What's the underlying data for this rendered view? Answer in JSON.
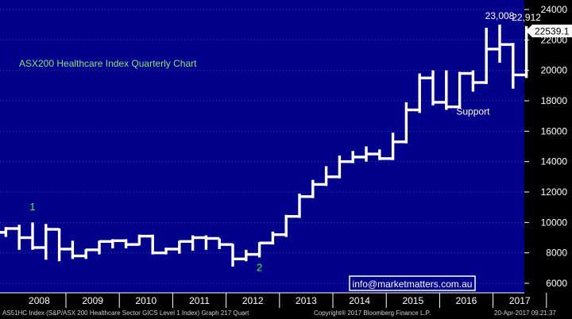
{
  "chart_data": {
    "type": "ohlc",
    "title": "ASX200 Healthcare Index Quarterly Chart",
    "periodicity": "Quarterly",
    "ylim": [
      5600,
      24400
    ],
    "y_ticks": [
      6000,
      8000,
      10000,
      12000,
      14000,
      16000,
      18000,
      20000,
      22000,
      24000
    ],
    "y_tick_labels": [
      "6000",
      "8000",
      "10000",
      "12000",
      "14000",
      "16000",
      "18000",
      "20000",
      "22000",
      "24000"
    ],
    "x_labels": [
      "2008",
      "2009",
      "2010",
      "2011",
      "2012",
      "2013",
      "2014",
      "2015",
      "2016",
      "2017"
    ],
    "bars": [
      {
        "q": "2007Q4",
        "o": 9350,
        "h": 9700,
        "l": 9050,
        "c": 9600
      },
      {
        "q": "2008Q1",
        "o": 9600,
        "h": 9850,
        "l": 8200,
        "c": 9000
      },
      {
        "q": "2008Q2",
        "o": 9000,
        "h": 10000,
        "l": 8200,
        "c": 8350
      },
      {
        "q": "2008Q3",
        "o": 8350,
        "h": 9900,
        "l": 7550,
        "c": 9550
      },
      {
        "q": "2008Q4",
        "o": 9550,
        "h": 9600,
        "l": 7450,
        "c": 8250
      },
      {
        "q": "2009Q1",
        "o": 8250,
        "h": 8800,
        "l": 7600,
        "c": 7800
      },
      {
        "q": "2009Q2",
        "o": 7800,
        "h": 8250,
        "l": 7600,
        "c": 8200
      },
      {
        "q": "2009Q3",
        "o": 8200,
        "h": 8800,
        "l": 7900,
        "c": 8750
      },
      {
        "q": "2009Q4",
        "o": 8750,
        "h": 8900,
        "l": 8300,
        "c": 8800
      },
      {
        "q": "2010Q1",
        "o": 8800,
        "h": 8900,
        "l": 8300,
        "c": 8550
      },
      {
        "q": "2010Q2",
        "o": 8550,
        "h": 9200,
        "l": 8500,
        "c": 9100
      },
      {
        "q": "2010Q3",
        "o": 9100,
        "h": 9200,
        "l": 7900,
        "c": 8000
      },
      {
        "q": "2010Q4",
        "o": 8000,
        "h": 8350,
        "l": 7900,
        "c": 8250
      },
      {
        "q": "2011Q1",
        "o": 8250,
        "h": 8800,
        "l": 7950,
        "c": 8750
      },
      {
        "q": "2011Q2",
        "o": 8750,
        "h": 9150,
        "l": 8150,
        "c": 9000
      },
      {
        "q": "2011Q3",
        "o": 9000,
        "h": 9150,
        "l": 8200,
        "c": 8950
      },
      {
        "q": "2011Q4",
        "o": 8950,
        "h": 8950,
        "l": 8250,
        "c": 8550
      },
      {
        "q": "2012Q1",
        "o": 8550,
        "h": 8600,
        "l": 7100,
        "c": 7600
      },
      {
        "q": "2012Q2",
        "o": 7600,
        "h": 8200,
        "l": 7450,
        "c": 7900
      },
      {
        "q": "2012Q3",
        "o": 7900,
        "h": 8700,
        "l": 7700,
        "c": 8650
      },
      {
        "q": "2012Q4",
        "o": 8650,
        "h": 9400,
        "l": 8550,
        "c": 9200
      },
      {
        "q": "2013Q1",
        "o": 9200,
        "h": 10500,
        "l": 9050,
        "c": 10400
      },
      {
        "q": "2013Q2",
        "o": 10400,
        "h": 11900,
        "l": 10300,
        "c": 11700
      },
      {
        "q": "2013Q3",
        "o": 11700,
        "h": 12800,
        "l": 11600,
        "c": 12500
      },
      {
        "q": "2013Q4",
        "o": 12500,
        "h": 13700,
        "l": 12400,
        "c": 13000
      },
      {
        "q": "2014Q1",
        "o": 13000,
        "h": 14400,
        "l": 12900,
        "c": 14000
      },
      {
        "q": "2014Q2",
        "o": 14000,
        "h": 14700,
        "l": 13900,
        "c": 14300
      },
      {
        "q": "2014Q3",
        "o": 14300,
        "h": 15000,
        "l": 14000,
        "c": 14500
      },
      {
        "q": "2014Q4",
        "o": 14500,
        "h": 14800,
        "l": 14100,
        "c": 14200
      },
      {
        "q": "2015Q1",
        "o": 14200,
        "h": 15900,
        "l": 14100,
        "c": 15300
      },
      {
        "q": "2015Q2",
        "o": 15300,
        "h": 17900,
        "l": 15200,
        "c": 17400
      },
      {
        "q": "2015Q3",
        "o": 17400,
        "h": 19800,
        "l": 17200,
        "c": 19500
      },
      {
        "q": "2015Q4",
        "o": 19500,
        "h": 20000,
        "l": 17700,
        "c": 17900
      },
      {
        "q": "2016Q1",
        "o": 17900,
        "h": 20000,
        "l": 17400,
        "c": 17600
      },
      {
        "q": "2016Q2",
        "o": 17600,
        "h": 19900,
        "l": 17500,
        "c": 19800
      },
      {
        "q": "2016Q3",
        "o": 19800,
        "h": 20000,
        "l": 18600,
        "c": 19200
      },
      {
        "q": "2016Q4",
        "o": 19200,
        "h": 22800,
        "l": 19100,
        "c": 21400
      },
      {
        "q": "2017Q1",
        "o": 21400,
        "h": 23008,
        "l": 20500,
        "c": 21700
      },
      {
        "q": "2017Q2",
        "o": 21700,
        "h": 21800,
        "l": 18800,
        "c": 19700
      },
      {
        "q": "2017Q3",
        "o": 19700,
        "h": 22912,
        "l": 19500,
        "c": 22600
      },
      {
        "q": "2017Q4",
        "o": 22600,
        "h": 22900,
        "l": 22400,
        "c": 22539.1
      }
    ],
    "last_price": "22539.1",
    "annotations": [
      {
        "text": "23,008",
        "x": "2017Q1",
        "y": 23008
      },
      {
        "text": "22,912",
        "x": "2017Q3",
        "y": 22912
      },
      {
        "text": "Support",
        "x": "2016Q3",
        "y": 17100
      },
      {
        "text": "1",
        "x": "2008Q2",
        "y": 10800
      },
      {
        "text": "2",
        "x": "2012Q3",
        "y": 6800
      }
    ],
    "watermark": "info@marketmatters.com.au",
    "colors": {
      "background": "#00008b",
      "bars": "#ffffff",
      "title": "#7fe87f",
      "label_number": "#3cff3c",
      "last_price_bg": "#ffffff",
      "axis_panel": "#000000"
    }
  },
  "footer": {
    "left": "AS51HC Index (S&P/ASX 200 Healthcare Sector GICS Level 1 Index) Graph 217  Quart",
    "center": "Copyright® 2017 Bloomberg Finance L.P.",
    "right": "20-Apr-2017 09:21:37"
  }
}
